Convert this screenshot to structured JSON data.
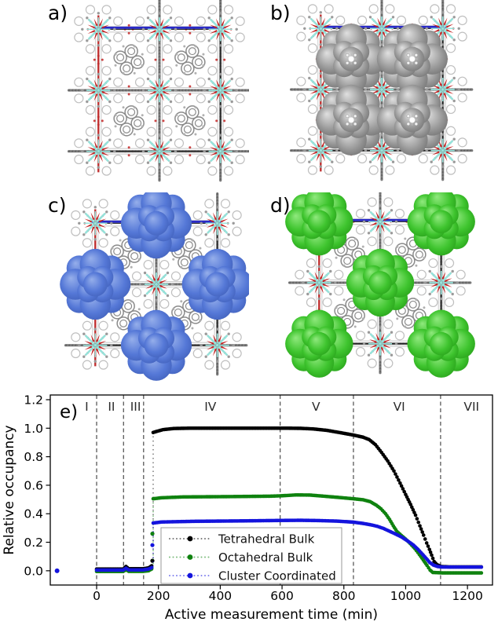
{
  "figure": {
    "panels": [
      {
        "label": "a)",
        "name": "framework-empty",
        "overlay": "none",
        "palette": "none"
      },
      {
        "label": "b)",
        "name": "framework-guest-gray",
        "overlay": "pores",
        "palette": "gray"
      },
      {
        "label": "c)",
        "name": "framework-density-blue",
        "overlay": "edges",
        "palette": "blue"
      },
      {
        "label": "d)",
        "name": "framework-density-green",
        "overlay": "corners-center",
        "palette": "green"
      }
    ],
    "framework_colors": {
      "red": "#c32424",
      "cyan": "#96e2da",
      "lace": "#bfbfbf",
      "bond": "#cdcdcd",
      "chain": "#7a7a7a",
      "chain2": "#565656",
      "ring": "#8a8a8a",
      "cell": "#1c1c1c",
      "topline": "#2929c8",
      "leftline": "#c03030"
    },
    "overlay_palettes": {
      "gray": {
        "light": "#e0e0e0",
        "base": "#9a9a9a",
        "dark": "#646464"
      },
      "blue": {
        "light": "#96afeb",
        "base": "#5578d7",
        "dark": "#3a58b0"
      },
      "green": {
        "light": "#90e97e",
        "base": "#3ec42e",
        "dark": "#1f9312"
      }
    }
  },
  "chart_data": {
    "type": "scatter",
    "panel_label": "e)",
    "title": "",
    "xlabel": "Active measurement time (min)",
    "ylabel": "Relative occupancy",
    "xlim": [
      -150,
      1281
    ],
    "ylim": [
      -0.1,
      1.233
    ],
    "xticks": [
      0,
      200,
      400,
      600,
      800,
      1000,
      1200
    ],
    "yticks": [
      0.0,
      0.2,
      0.4,
      0.6,
      0.8,
      1.0,
      1.2
    ],
    "grid": false,
    "region_boundaries_min": [
      0,
      87,
      152,
      594,
      831,
      1113
    ],
    "region_label_y": 1.155,
    "region_labels": [
      {
        "text": "I",
        "x": -32
      },
      {
        "text": "II",
        "x": 48
      },
      {
        "text": "III",
        "x": 126
      },
      {
        "text": "IV",
        "x": 368
      },
      {
        "text": "V",
        "x": 710
      },
      {
        "text": "VI",
        "x": 979
      },
      {
        "text": "VII",
        "x": 1213
      }
    ],
    "legend": {
      "position": "lower-center-left",
      "entries": [
        {
          "label": "Tetrahedral Bulk",
          "color": "#000000"
        },
        {
          "label": "Octahedral Bulk",
          "color": "#0f820f"
        },
        {
          "label": "Cluster Coordinated",
          "color": "#1414dd"
        }
      ]
    },
    "series": [
      {
        "name": "Tetrahedral Bulk",
        "color": "#000000",
        "marker": "o",
        "linestyle": "dotted",
        "isolated_points": [],
        "jump": {
          "x": 183,
          "from": 0.035,
          "to": 0.97,
          "markers": [
            0.07
          ]
        },
        "points": [
          [
            0,
            0.012
          ],
          [
            40,
            0.012
          ],
          [
            86,
            0.012
          ],
          [
            95,
            0.03
          ],
          [
            104,
            0.014
          ],
          [
            150,
            0.014
          ],
          [
            168,
            0.02
          ],
          [
            178,
            0.035
          ],
          [
            183,
            0.97
          ],
          [
            195,
            0.978
          ],
          [
            215,
            0.99
          ],
          [
            250,
            0.998
          ],
          [
            300,
            1.0
          ],
          [
            620,
            1.0
          ],
          [
            660,
            0.999
          ],
          [
            700,
            0.995
          ],
          [
            745,
            0.985
          ],
          [
            790,
            0.968
          ],
          [
            831,
            0.952
          ],
          [
            862,
            0.937
          ],
          [
            882,
            0.92
          ],
          [
            902,
            0.885
          ],
          [
            922,
            0.83
          ],
          [
            942,
            0.77
          ],
          [
            962,
            0.7
          ],
          [
            982,
            0.615
          ],
          [
            1000,
            0.535
          ],
          [
            1016,
            0.465
          ],
          [
            1032,
            0.39
          ],
          [
            1046,
            0.315
          ],
          [
            1058,
            0.25
          ],
          [
            1068,
            0.195
          ],
          [
            1077,
            0.15
          ],
          [
            1084,
            0.11
          ],
          [
            1092,
            0.065
          ],
          [
            1102,
            0.042
          ],
          [
            1115,
            0.03
          ],
          [
            1140,
            0.027
          ],
          [
            1245,
            0.027
          ]
        ]
      },
      {
        "name": "Octahedral Bulk",
        "color": "#0f820f",
        "marker": "o",
        "linestyle": "dotted",
        "isolated_points": [],
        "jump": {
          "x": 183,
          "from": 0.012,
          "to": 0.505,
          "markers": [
            0.26
          ]
        },
        "points": [
          [
            0,
            -0.005
          ],
          [
            86,
            -0.005
          ],
          [
            95,
            0.008
          ],
          [
            104,
            -0.004
          ],
          [
            150,
            -0.004
          ],
          [
            168,
            0.0
          ],
          [
            178,
            0.012
          ],
          [
            183,
            0.505
          ],
          [
            210,
            0.512
          ],
          [
            280,
            0.518
          ],
          [
            420,
            0.52
          ],
          [
            560,
            0.523
          ],
          [
            600,
            0.526
          ],
          [
            645,
            0.532
          ],
          [
            690,
            0.531
          ],
          [
            730,
            0.524
          ],
          [
            780,
            0.515
          ],
          [
            831,
            0.505
          ],
          [
            862,
            0.498
          ],
          [
            885,
            0.485
          ],
          [
            905,
            0.46
          ],
          [
            920,
            0.435
          ],
          [
            935,
            0.4
          ],
          [
            948,
            0.36
          ],
          [
            960,
            0.315
          ],
          [
            972,
            0.275
          ],
          [
            986,
            0.248
          ],
          [
            1000,
            0.222
          ],
          [
            1015,
            0.19
          ],
          [
            1030,
            0.155
          ],
          [
            1044,
            0.115
          ],
          [
            1057,
            0.075
          ],
          [
            1069,
            0.038
          ],
          [
            1079,
            0.005
          ],
          [
            1088,
            -0.012
          ],
          [
            1120,
            -0.015
          ],
          [
            1245,
            -0.015
          ]
        ]
      },
      {
        "name": "Cluster Coordinated",
        "color": "#1414dd",
        "marker": "o",
        "linestyle": "dotted",
        "isolated_points": [
          [
            -128,
            0.0
          ]
        ],
        "jump": {
          "x": 183,
          "from": 0.022,
          "to": 0.335,
          "markers": [
            0.18
          ]
        },
        "points": [
          [
            0,
            0.005
          ],
          [
            86,
            0.005
          ],
          [
            95,
            0.018
          ],
          [
            104,
            0.006
          ],
          [
            150,
            0.006
          ],
          [
            168,
            0.012
          ],
          [
            178,
            0.022
          ],
          [
            183,
            0.335
          ],
          [
            210,
            0.342
          ],
          [
            320,
            0.347
          ],
          [
            480,
            0.35
          ],
          [
            600,
            0.353
          ],
          [
            660,
            0.354
          ],
          [
            720,
            0.352
          ],
          [
            780,
            0.348
          ],
          [
            831,
            0.341
          ],
          [
            862,
            0.332
          ],
          [
            888,
            0.322
          ],
          [
            908,
            0.312
          ],
          [
            928,
            0.297
          ],
          [
            948,
            0.277
          ],
          [
            968,
            0.257
          ],
          [
            988,
            0.235
          ],
          [
            1006,
            0.21
          ],
          [
            1024,
            0.182
          ],
          [
            1040,
            0.15
          ],
          [
            1054,
            0.117
          ],
          [
            1066,
            0.088
          ],
          [
            1078,
            0.058
          ],
          [
            1090,
            0.04
          ],
          [
            1103,
            0.03
          ],
          [
            1120,
            0.026
          ],
          [
            1245,
            0.026
          ]
        ]
      }
    ]
  }
}
